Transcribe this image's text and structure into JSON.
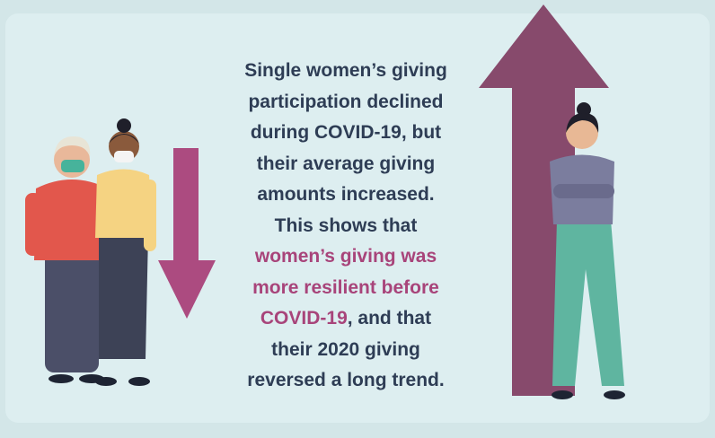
{
  "message": {
    "intro": [
      "Single women’s giving",
      "participation declined",
      "during COVID-19, but",
      "their average giving",
      "amounts increased.",
      "This shows that"
    ],
    "emphasis": [
      "women’s giving was",
      "more resilient before",
      "COVID-19"
    ],
    "ending": [
      ", and that",
      "their 2020 giving",
      "reversed a long trend."
    ]
  }
}
